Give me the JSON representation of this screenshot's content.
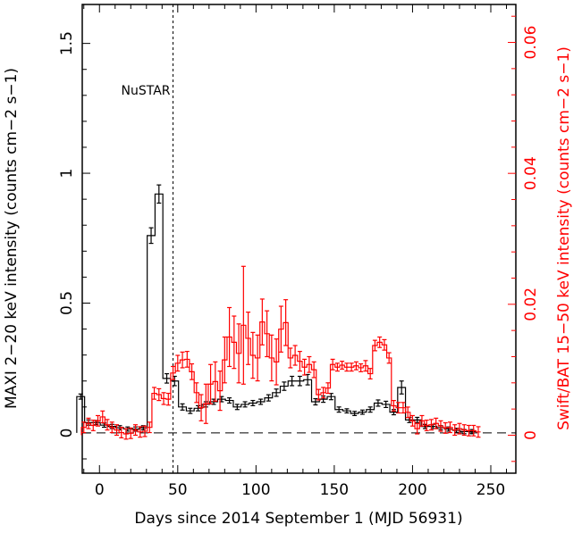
{
  "chart_data": {
    "type": "line",
    "title": "",
    "xlabel": "Days since 2014 September 1 (MJD 56931)",
    "ylabel_left": "MAXI 2−20 keV intensity (counts cm−2 s−1)",
    "ylabel_right": "Swift/BAT 15−50 keV intensity (counts cm−2 s−1)",
    "xlim": [
      -11,
      266
    ],
    "ylim_left": [
      -0.155,
      1.65
    ],
    "ylim_right": [
      -0.0058,
      0.0658
    ],
    "xticks": [
      0,
      50,
      100,
      150,
      200,
      250
    ],
    "yticks_left": [
      0,
      0.5,
      1,
      1.5
    ],
    "yticks_right": [
      0,
      0.02,
      0.04,
      0.06
    ],
    "ytick_labels_left": [
      "0",
      "0.5",
      "1",
      "1.5"
    ],
    "ytick_labels_right": [
      "0",
      "0.02",
      "0.04",
      "0.06"
    ],
    "xtick_labels": [
      "0",
      "50",
      "100",
      "150",
      "200",
      "250"
    ],
    "colors": {
      "maxi": "#000000",
      "bat": "#ff0000",
      "axis": "#000000"
    },
    "annotations": [
      {
        "text": "NuSTAR",
        "x": 47
      }
    ],
    "series": [
      {
        "name": "MAXI",
        "axis": "left",
        "bin_width": 5,
        "x": [
          -12,
          -7,
          -2,
          3,
          8,
          13,
          18,
          23,
          28,
          33,
          38,
          43,
          48,
          53,
          58,
          63,
          68,
          73,
          78,
          83,
          88,
          93,
          98,
          103,
          108,
          113,
          118,
          123,
          128,
          133,
          138,
          143,
          148,
          153,
          158,
          163,
          168,
          173,
          178,
          183,
          188,
          193,
          198,
          203,
          208,
          213,
          218,
          223,
          228,
          233,
          238
        ],
        "y": [
          0.14,
          0.04,
          0.04,
          0.03,
          0.025,
          0.02,
          0.015,
          0.015,
          0.02,
          0.76,
          0.92,
          0.21,
          0.2,
          0.1,
          0.085,
          0.095,
          0.11,
          0.12,
          0.13,
          0.125,
          0.1,
          0.11,
          0.115,
          0.12,
          0.135,
          0.155,
          0.18,
          0.2,
          0.2,
          0.205,
          0.12,
          0.13,
          0.14,
          0.09,
          0.085,
          0.075,
          0.08,
          0.09,
          0.115,
          0.11,
          0.08,
          0.175,
          0.05,
          0.05,
          0.025,
          0.025,
          0.02,
          0.015,
          0.01,
          0.005,
          0.005
        ],
        "err": [
          0.01,
          0.01,
          0.008,
          0.008,
          0.008,
          0.008,
          0.008,
          0.008,
          0.008,
          0.03,
          0.035,
          0.018,
          0.018,
          0.012,
          0.01,
          0.01,
          0.01,
          0.01,
          0.01,
          0.01,
          0.01,
          0.01,
          0.01,
          0.01,
          0.012,
          0.014,
          0.016,
          0.018,
          0.018,
          0.02,
          0.012,
          0.012,
          0.012,
          0.01,
          0.008,
          0.008,
          0.008,
          0.01,
          0.012,
          0.012,
          0.01,
          0.025,
          0.01,
          0.01,
          0.008,
          0.008,
          0.008,
          0.008,
          0.008,
          0.008,
          0.008
        ]
      },
      {
        "name": "Swift/BAT",
        "axis": "right",
        "bin_width": 3,
        "x": [
          -10,
          -7,
          -4,
          -1,
          2,
          5,
          8,
          11,
          14,
          17,
          20,
          23,
          26,
          29,
          32,
          35,
          38,
          41,
          44,
          47,
          50,
          53,
          56,
          59,
          62,
          65,
          68,
          71,
          74,
          77,
          80,
          83,
          86,
          89,
          92,
          95,
          98,
          101,
          104,
          107,
          110,
          113,
          116,
          119,
          122,
          125,
          128,
          131,
          134,
          137,
          140,
          143,
          146,
          149,
          152,
          155,
          158,
          161,
          164,
          167,
          170,
          173,
          176,
          179,
          182,
          185,
          188,
          191,
          194,
          197,
          200,
          203,
          206,
          209,
          212,
          215,
          218,
          221,
          224,
          227,
          230,
          233,
          236,
          239,
          242
        ],
        "y": [
          0.0012,
          0.0018,
          0.0015,
          0.0022,
          0.0028,
          0.0016,
          0.0012,
          0.0008,
          0.0004,
          0.0002,
          0.0003,
          0.0008,
          0.0005,
          0.0006,
          0.0012,
          0.0064,
          0.0062,
          0.0056,
          0.0055,
          0.0095,
          0.011,
          0.0115,
          0.0116,
          0.0097,
          0.0065,
          0.0042,
          0.0048,
          0.0078,
          0.0082,
          0.0068,
          0.0115,
          0.015,
          0.0142,
          0.0125,
          0.0168,
          0.0148,
          0.0122,
          0.0118,
          0.0173,
          0.0155,
          0.0118,
          0.0112,
          0.0162,
          0.0172,
          0.0118,
          0.0122,
          0.0113,
          0.0104,
          0.0108,
          0.01,
          0.0062,
          0.0065,
          0.0072,
          0.0108,
          0.0104,
          0.0107,
          0.0104,
          0.0104,
          0.0106,
          0.0103,
          0.0106,
          0.0094,
          0.0137,
          0.0142,
          0.0138,
          0.0118,
          0.0045,
          0.0042,
          0.0042,
          0.0035,
          0.0022,
          0.001,
          0.0022,
          0.0015,
          0.0016,
          0.0018,
          0.0014,
          0.0011,
          0.0012,
          0.0008,
          0.001,
          0.0008,
          0.0007,
          0.0007,
          0.0005
        ],
        "err": [
          0.0008,
          0.0008,
          0.0008,
          0.0008,
          0.0009,
          0.0008,
          0.0008,
          0.0008,
          0.0008,
          0.0008,
          0.0008,
          0.0008,
          0.0008,
          0.0008,
          0.0008,
          0.0009,
          0.0009,
          0.0009,
          0.0009,
          0.001,
          0.0012,
          0.0012,
          0.0012,
          0.0012,
          0.0015,
          0.002,
          0.003,
          0.003,
          0.003,
          0.003,
          0.0035,
          0.0045,
          0.004,
          0.0045,
          0.009,
          0.004,
          0.0035,
          0.0035,
          0.0035,
          0.0035,
          0.0035,
          0.0035,
          0.0035,
          0.0035,
          0.0015,
          0.0015,
          0.0015,
          0.0012,
          0.0012,
          0.0012,
          0.0008,
          0.0008,
          0.0008,
          0.0008,
          0.0006,
          0.0006,
          0.0006,
          0.0006,
          0.0006,
          0.0006,
          0.0008,
          0.0008,
          0.0008,
          0.0008,
          0.0008,
          0.0008,
          0.0008,
          0.0008,
          0.0008,
          0.0008,
          0.0008,
          0.0008,
          0.0008,
          0.0008,
          0.0008,
          0.0008,
          0.0008,
          0.0008,
          0.0008,
          0.0008,
          0.0008,
          0.0008,
          0.0008,
          0.0008,
          0.0008
        ]
      }
    ],
    "reference_lines": [
      {
        "type": "horizontal",
        "axis": "left",
        "y": 0,
        "style": "dashed"
      },
      {
        "type": "vertical",
        "x": 47,
        "style": "dotted",
        "label": "NuSTAR"
      }
    ]
  }
}
